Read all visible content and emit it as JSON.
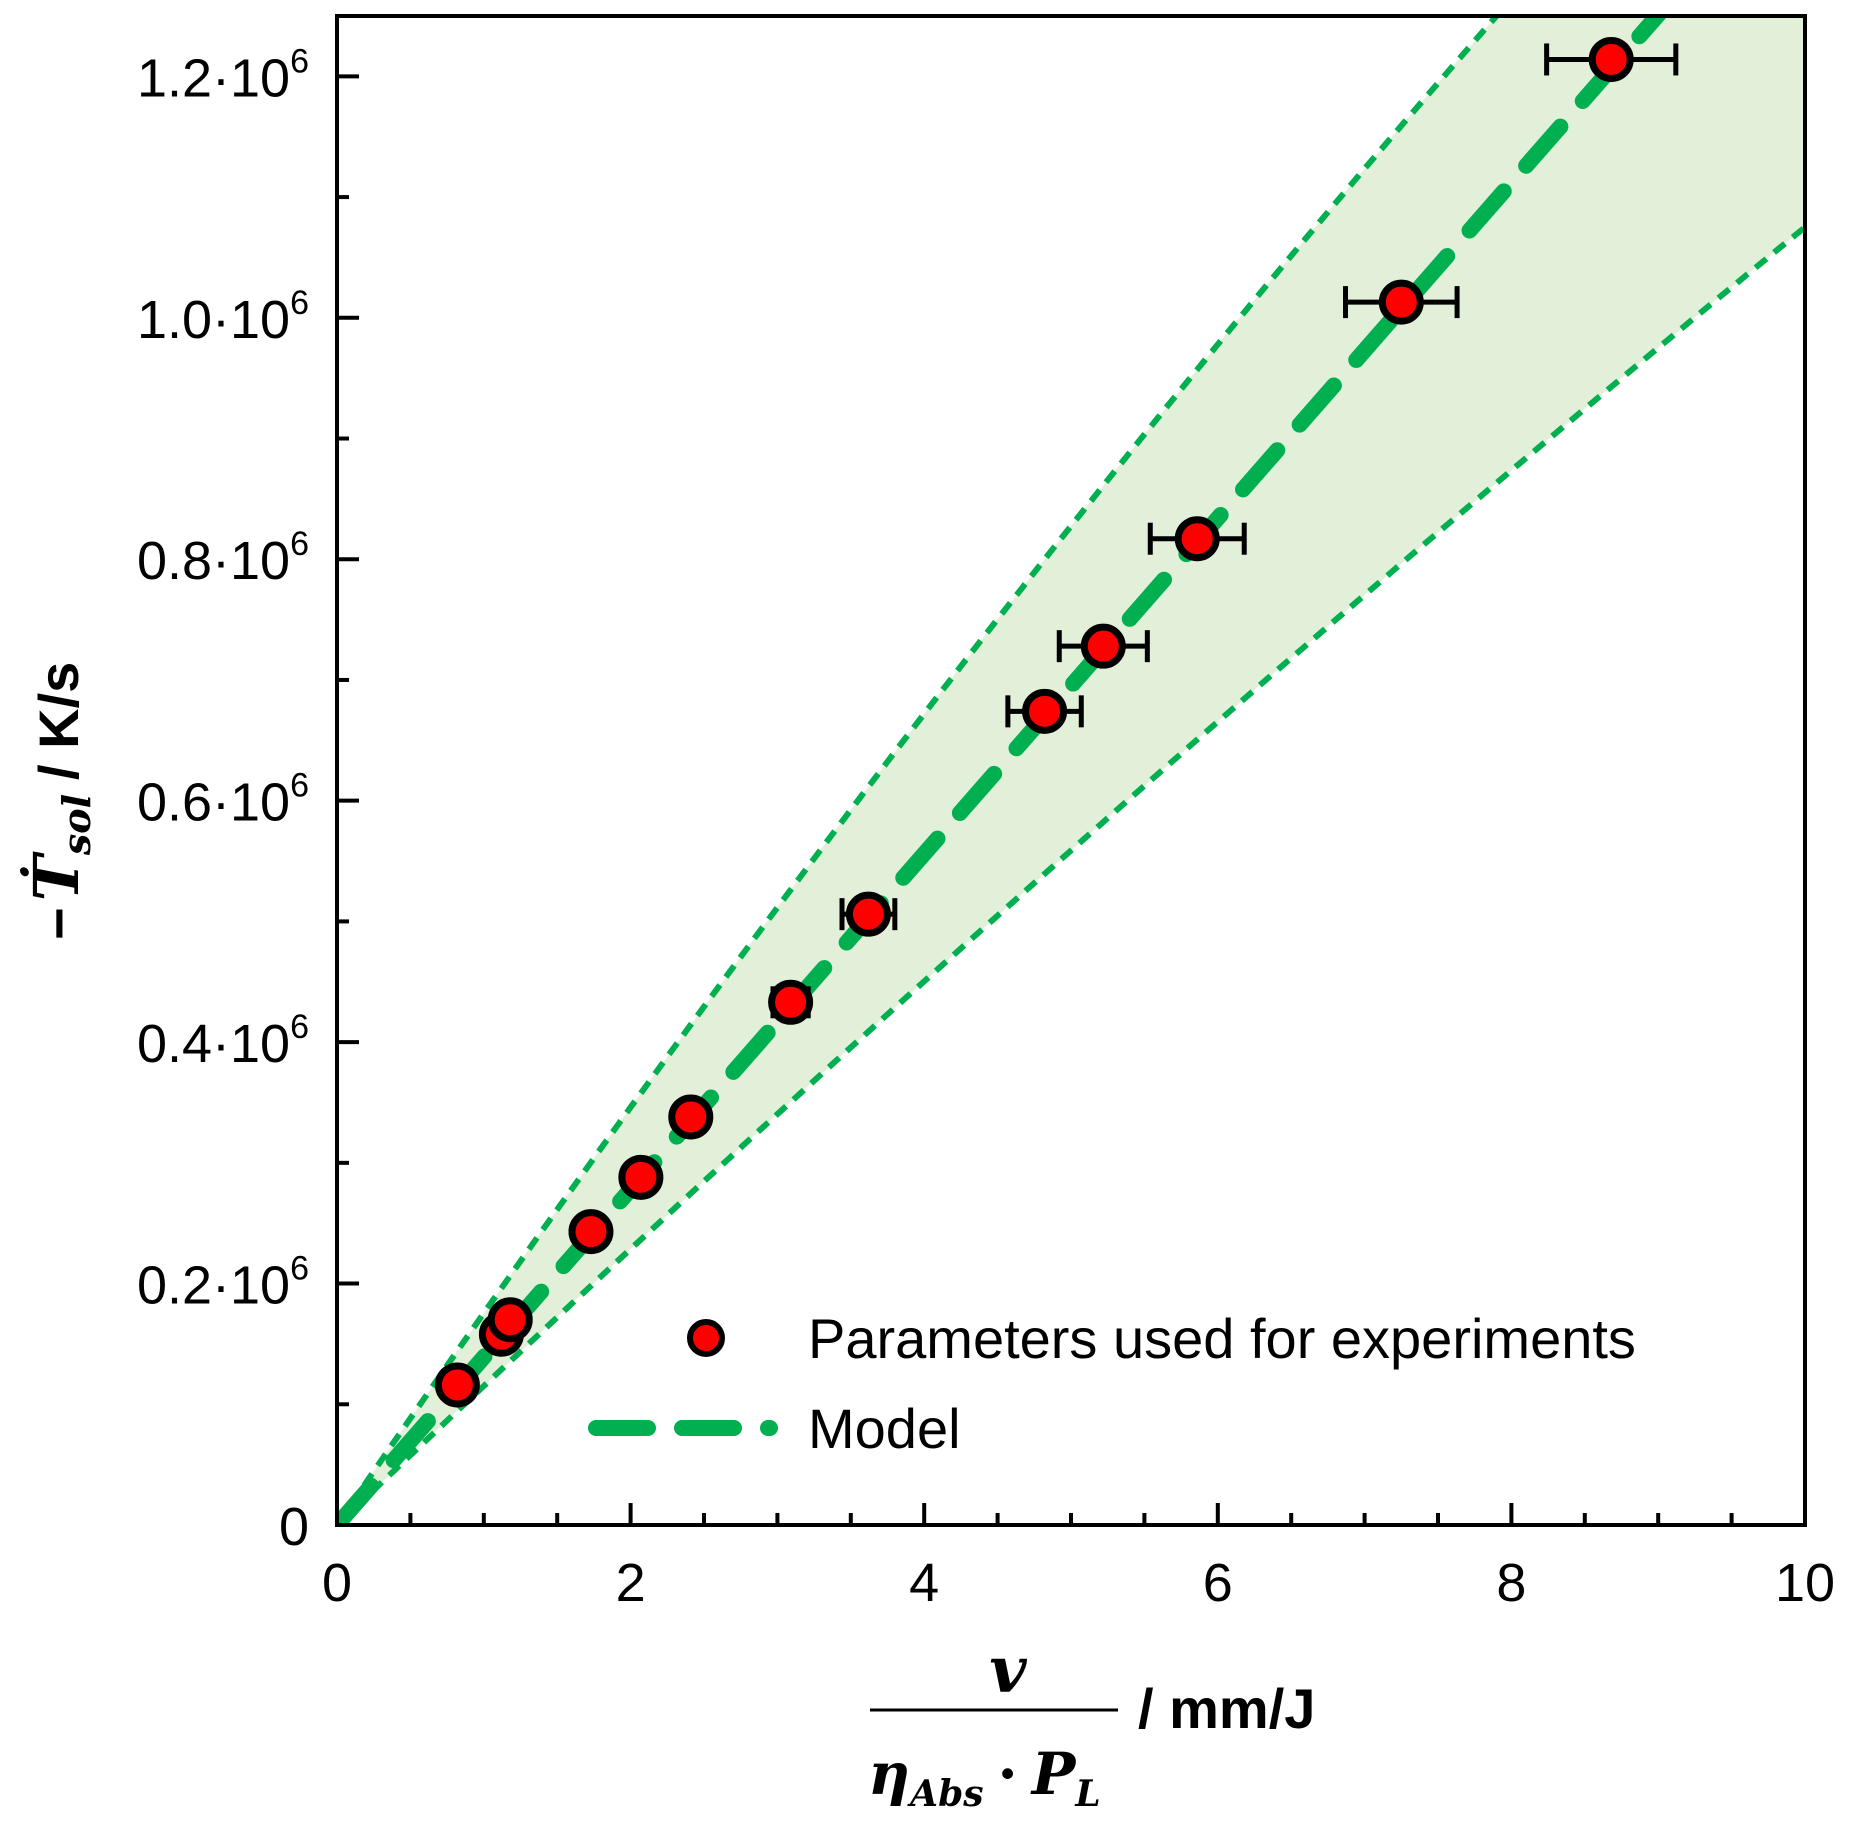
{
  "chart_data": {
    "type": "scatter",
    "title": "",
    "xlabel": {
      "numerator": "v",
      "denominator_main": "η",
      "denominator_sub": "Abs",
      "dot": "·",
      "denominator_p": "P",
      "denominator_p_sub": "L",
      "unit": "/ mm/J"
    },
    "ylabel": {
      "prefix": "−",
      "symbol": "Ṫ",
      "sub": "sol",
      "unit": "/ K/s"
    },
    "xlim": [
      0,
      10
    ],
    "ylim": [
      0,
      1250000
    ],
    "x_ticks": [
      {
        "value": 0,
        "label": "0"
      },
      {
        "value": 2,
        "label": "2"
      },
      {
        "value": 4,
        "label": "4"
      },
      {
        "value": 6,
        "label": "6"
      },
      {
        "value": 8,
        "label": "8"
      },
      {
        "value": 10,
        "label": "10"
      }
    ],
    "y_ticks": [
      {
        "value": 0,
        "label": "0",
        "exp": ""
      },
      {
        "value": 200000,
        "label": "0.2·10",
        "exp": "6"
      },
      {
        "value": 400000,
        "label": "0.4·10",
        "exp": "6"
      },
      {
        "value": 600000,
        "label": "0.6·10",
        "exp": "6"
      },
      {
        "value": 800000,
        "label": "0.8·10",
        "exp": "6"
      },
      {
        "value": 1000000,
        "label": "1.0·10",
        "exp": "6"
      },
      {
        "value": 1200000,
        "label": "1.2·10",
        "exp": "6"
      }
    ],
    "series": [
      {
        "name": "Parameters used for experiments",
        "kind": "scatter",
        "color": "#ff0000",
        "points": [
          {
            "x": 0.82,
            "y": 116000,
            "xerr": 0.0
          },
          {
            "x": 1.12,
            "y": 158000,
            "xerr": 0.0
          },
          {
            "x": 1.18,
            "y": 170000,
            "xerr": 0.0
          },
          {
            "x": 1.73,
            "y": 243000,
            "xerr": 0.03
          },
          {
            "x": 2.07,
            "y": 288000,
            "xerr": 0.04
          },
          {
            "x": 2.41,
            "y": 338000,
            "xerr": 0.05
          },
          {
            "x": 3.09,
            "y": 433000,
            "xerr": 0.12
          },
          {
            "x": 3.62,
            "y": 506000,
            "xerr": 0.18
          },
          {
            "x": 4.82,
            "y": 674000,
            "xerr": 0.25
          },
          {
            "x": 5.22,
            "y": 728000,
            "xerr": 0.3
          },
          {
            "x": 5.86,
            "y": 817000,
            "xerr": 0.32
          },
          {
            "x": 7.25,
            "y": 1013000,
            "xerr": 0.38
          },
          {
            "x": 8.68,
            "y": 1214000,
            "xerr": 0.44
          }
        ]
      },
      {
        "name": "Model",
        "kind": "line",
        "color": "#00b050",
        "slope": 139000,
        "upper_band_slope": [
          178000,
          -2500
        ],
        "lower_band_slope": [
          116000,
          -850
        ]
      }
    ],
    "band_color": "#e2f0d9",
    "legend_position": "bottom-right",
    "legend": [
      {
        "label": "Parameters used for experiments",
        "kind": "marker"
      },
      {
        "label": "Model",
        "kind": "dash"
      }
    ]
  }
}
